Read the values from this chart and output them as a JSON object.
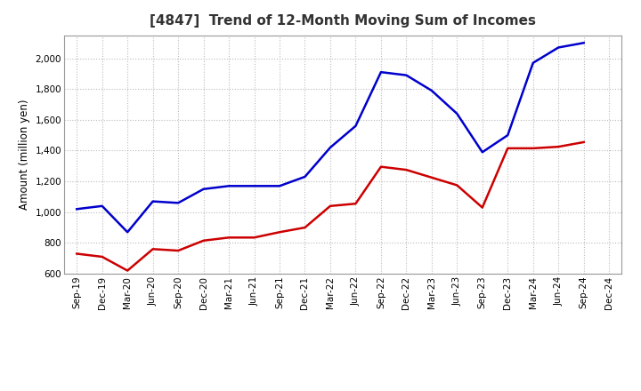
{
  "title": "[4847]  Trend of 12-Month Moving Sum of Incomes",
  "ylabel": "Amount (million yen)",
  "ylim": [
    600,
    2150
  ],
  "yticks": [
    600,
    800,
    1000,
    1200,
    1400,
    1600,
    1800,
    2000
  ],
  "background_color": "#ffffff",
  "plot_bg_color": "#ffffff",
  "x_labels": [
    "Sep-19",
    "Dec-19",
    "Mar-20",
    "Jun-20",
    "Sep-20",
    "Dec-20",
    "Mar-21",
    "Jun-21",
    "Sep-21",
    "Dec-21",
    "Mar-22",
    "Jun-22",
    "Sep-22",
    "Dec-22",
    "Mar-23",
    "Jun-23",
    "Sep-23",
    "Dec-23",
    "Mar-24",
    "Jun-24",
    "Sep-24",
    "Dec-24"
  ],
  "ordinary_income": [
    1020,
    1040,
    870,
    1070,
    1060,
    1150,
    1170,
    1170,
    1170,
    1230,
    1420,
    1560,
    1910,
    1890,
    1790,
    1640,
    1390,
    1500,
    1970,
    2070,
    2100,
    null
  ],
  "net_income": [
    730,
    710,
    620,
    760,
    750,
    815,
    835,
    835,
    870,
    900,
    1040,
    1055,
    1295,
    1275,
    1225,
    1175,
    1030,
    1415,
    1415,
    1425,
    1455,
    null
  ],
  "ordinary_color": "#0000cc",
  "net_color": "#cc0000",
  "line_width": 1.8,
  "grid_color": "#bbbbbb",
  "title_fontsize": 11,
  "tick_fontsize": 7.5,
  "ylabel_fontsize": 8.5,
  "legend_fontsize": 9
}
